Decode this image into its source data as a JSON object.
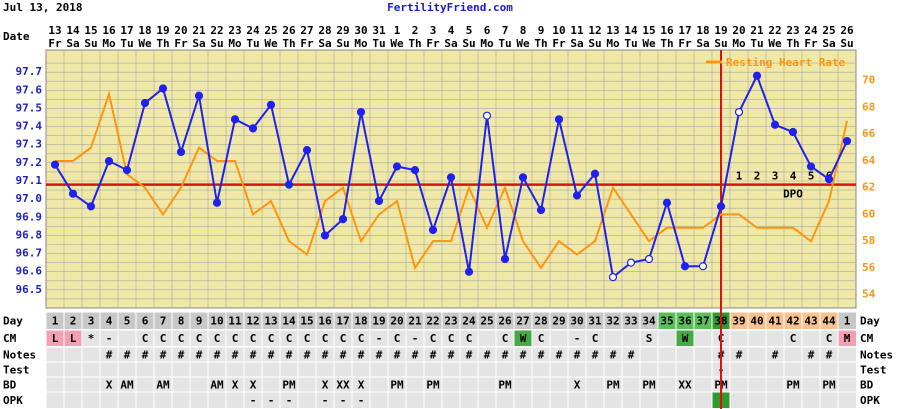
{
  "header": {
    "date": "Jul 13, 2018",
    "site": "FertilityFriend.com"
  },
  "chart_data": {
    "type": "line",
    "x_label": "Date",
    "categories": [
      "13",
      "14",
      "15",
      "16",
      "17",
      "18",
      "19",
      "20",
      "21",
      "22",
      "23",
      "24",
      "25",
      "26",
      "27",
      "28",
      "29",
      "30",
      "31",
      "1",
      "2",
      "3",
      "4",
      "5",
      "6",
      "7",
      "8",
      "9",
      "10",
      "11",
      "12",
      "13",
      "14",
      "15",
      "16",
      "17",
      "18",
      "19",
      "20",
      "21",
      "22",
      "23",
      "24",
      "25",
      "26"
    ],
    "weekdays": [
      "Fr",
      "Sa",
      "Su",
      "Mo",
      "Tu",
      "We",
      "Th",
      "Fr",
      "Sa",
      "Su",
      "Mo",
      "Tu",
      "We",
      "Th",
      "Fr",
      "Sa",
      "Su",
      "Mo",
      "Tu",
      "We",
      "Th",
      "Fr",
      "Sa",
      "Su",
      "Mo",
      "Tu",
      "We",
      "Th",
      "Fr",
      "Sa",
      "Su",
      "Mo",
      "Tu",
      "We",
      "Th",
      "Fr",
      "Sa",
      "Su",
      "Mo",
      "Tu",
      "We",
      "Th",
      "Fr",
      "Sa",
      "Su"
    ],
    "ylim": [
      96.4,
      97.8
    ],
    "yticks": [
      96.5,
      96.6,
      96.7,
      96.8,
      96.9,
      {
        "value": 97,
        "label": "97.0"
      },
      97.1,
      97.2,
      97.3,
      97.4,
      97.5,
      97.6,
      97.7
    ],
    "yminor": [
      96.45,
      96.55,
      96.65,
      96.75,
      96.85,
      96.95,
      97.05,
      97.15,
      97.25,
      97.35,
      97.45,
      97.55,
      97.65,
      97.75
    ],
    "y2lim": [
      53,
      72
    ],
    "y2ticks": [
      54,
      56,
      58,
      60,
      62,
      64,
      66,
      68,
      70
    ],
    "series": [
      {
        "color": "#2020f0",
        "hollow_days": [
          25,
          32,
          33,
          34,
          37,
          39
        ],
        "values": [
          97.19,
          97.03,
          96.96,
          97.21,
          97.16,
          97.53,
          97.61,
          97.26,
          97.57,
          96.98,
          97.44,
          97.39,
          97.52,
          97.08,
          97.27,
          96.8,
          96.89,
          97.48,
          96.99,
          97.18,
          97.16,
          96.83,
          97.12,
          96.6,
          97.46,
          96.67,
          97.12,
          96.94,
          97.44,
          97.02,
          97.14,
          96.57,
          96.65,
          96.67,
          96.98,
          96.63,
          96.63,
          96.96,
          97.48,
          97.68,
          97.41,
          97.37,
          97.18,
          97.11,
          97.32
        ]
      },
      {
        "name": "Resting Heart Rate",
        "color": "#ff9410",
        "axis": "y2",
        "values": [
          64,
          64,
          65,
          69,
          63,
          62,
          60,
          62,
          65,
          64,
          64,
          60,
          61,
          58,
          57,
          61,
          62,
          58,
          60,
          61,
          56,
          58,
          58,
          62,
          59,
          62,
          58,
          56,
          58,
          57,
          58,
          62,
          60,
          58,
          59,
          59,
          59,
          60,
          60,
          59,
          59,
          59,
          58,
          61,
          67
        ]
      }
    ],
    "coverline": 97.08,
    "marker_line_color": "#e01010",
    "ovulation_day": 38,
    "dpo": [
      null,
      null,
      null,
      null,
      null,
      null,
      null,
      null,
      null,
      null,
      null,
      null,
      null,
      null,
      null,
      null,
      null,
      null,
      null,
      null,
      null,
      null,
      null,
      null,
      null,
      null,
      null,
      null,
      null,
      null,
      null,
      null,
      null,
      null,
      null,
      null,
      null,
      null,
      1,
      2,
      3,
      4,
      5,
      6,
      null
    ],
    "dpo_label": "DPO",
    "legend": "top-right",
    "grid": true,
    "background": "#efe8a6"
  },
  "table": {
    "rows": [
      {
        "label": "Day",
        "cells": [
          1,
          2,
          3,
          4,
          5,
          6,
          7,
          8,
          9,
          10,
          11,
          12,
          13,
          14,
          15,
          16,
          17,
          18,
          19,
          20,
          21,
          22,
          23,
          24,
          25,
          26,
          27,
          28,
          29,
          30,
          31,
          32,
          33,
          34,
          35,
          36,
          37,
          38,
          39,
          40,
          41,
          42,
          43,
          44,
          1
        ],
        "colors": [
          "#c8c8c8",
          "#c8c8c8",
          "#c8c8c8",
          "#c8c8c8",
          "#c8c8c8",
          "#c8c8c8",
          "#c8c8c8",
          "#c8c8c8",
          "#c8c8c8",
          "#c8c8c8",
          "#c8c8c8",
          "#c8c8c8",
          "#c8c8c8",
          "#c8c8c8",
          "#c8c8c8",
          "#c8c8c8",
          "#c8c8c8",
          "#c8c8c8",
          "#c8c8c8",
          "#c8c8c8",
          "#c8c8c8",
          "#c8c8c8",
          "#c8c8c8",
          "#c8c8c8",
          "#c8c8c8",
          "#c8c8c8",
          "#c8c8c8",
          "#c8c8c8",
          "#c8c8c8",
          "#c8c8c8",
          "#c8c8c8",
          "#c8c8c8",
          "#c8c8c8",
          "#c8c8c8",
          "#5cbf5c",
          "#5cbf5c",
          "#5cbf5c",
          "#2f9a2f",
          "#f7c190",
          "#f7c190",
          "#f7c190",
          "#f7c190",
          "#f7c190",
          "#f7c190",
          "#c8c8c8"
        ]
      },
      {
        "label": "CM",
        "cells": [
          "L",
          "L",
          "*",
          "-",
          null,
          "C",
          "C",
          "C",
          "C",
          "C",
          "C",
          "C",
          "C",
          "C",
          "C",
          "C",
          "C",
          "C",
          "-",
          "C",
          "-",
          "C",
          "C",
          "C",
          null,
          "C",
          "W",
          "C",
          null,
          "-",
          "C",
          null,
          null,
          "S",
          null,
          "W",
          null,
          "C",
          null,
          null,
          null,
          "C",
          null,
          "C",
          "M"
        ],
        "color_map": {
          "L": "#f4a0b4",
          "W": "#44aa44",
          "M": "#f4a0b4"
        }
      },
      {
        "label": "Notes",
        "cells": [
          null,
          null,
          null,
          "#",
          "#",
          "#",
          "#",
          "#",
          "#",
          "#",
          "#",
          "#",
          "#",
          "#",
          "#",
          "#",
          "#",
          "#",
          "#",
          "#",
          "#",
          "#",
          "#",
          "#",
          "#",
          "#",
          "#",
          "#",
          "#",
          "#",
          "#",
          "#",
          "#",
          null,
          null,
          null,
          null,
          "#",
          "#",
          null,
          "#",
          null,
          "#",
          "#",
          null
        ]
      },
      {
        "label": "Test",
        "cells": [
          null,
          null,
          null,
          null,
          null,
          null,
          null,
          null,
          null,
          null,
          null,
          null,
          null,
          null,
          null,
          null,
          null,
          null,
          null,
          null,
          null,
          null,
          null,
          null,
          null,
          null,
          null,
          null,
          null,
          null,
          null,
          null,
          null,
          null,
          null,
          null,
          null,
          "-",
          null,
          null,
          null,
          null,
          null,
          null,
          null
        ]
      },
      {
        "label": "BD",
        "cells": [
          null,
          null,
          null,
          "X",
          "AM",
          null,
          "AM",
          null,
          null,
          "AM",
          "X",
          "X",
          null,
          "PM",
          null,
          "X",
          "XX",
          "X",
          null,
          "PM",
          null,
          "PM",
          null,
          null,
          null,
          "PM",
          null,
          null,
          null,
          "X",
          null,
          "PM",
          null,
          "PM",
          null,
          "XX",
          null,
          "PM",
          null,
          null,
          null,
          "PM",
          null,
          "PM",
          null
        ]
      },
      {
        "label": "OPK",
        "cells": [
          null,
          null,
          null,
          null,
          null,
          null,
          null,
          null,
          null,
          null,
          null,
          "-",
          "-",
          "-",
          null,
          "-",
          "-",
          "-",
          null,
          null,
          null,
          null,
          null,
          null,
          null,
          null,
          null,
          null,
          null,
          null,
          null,
          null,
          null,
          null,
          null,
          null,
          null,
          null,
          null,
          null,
          null,
          null,
          null,
          null,
          null
        ],
        "colors": [
          null,
          null,
          null,
          null,
          null,
          null,
          null,
          null,
          null,
          null,
          null,
          null,
          null,
          null,
          null,
          null,
          null,
          null,
          null,
          null,
          null,
          null,
          null,
          null,
          null,
          null,
          null,
          null,
          null,
          null,
          null,
          null,
          null,
          null,
          null,
          null,
          null,
          "#2f9a2f",
          null,
          null,
          null,
          null,
          null,
          null,
          null
        ]
      }
    ]
  }
}
